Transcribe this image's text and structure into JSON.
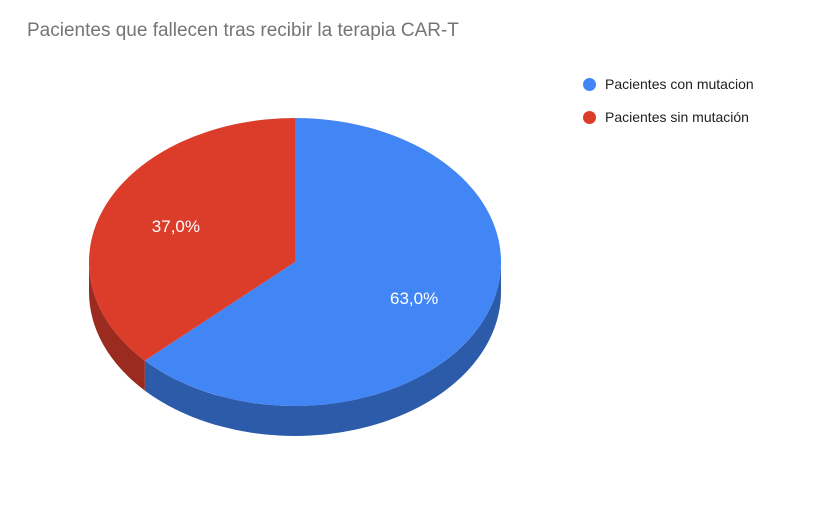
{
  "chart_data": {
    "type": "pie",
    "title": "Pacientes que fallecen tras recibir la terapia CAR-T",
    "is_3d": true,
    "legend_position": "right",
    "rotation": "clockwise",
    "start_angle_deg_from_top": 0,
    "slices": [
      {
        "label": "Pacientes con mutacion",
        "value": 63.0,
        "display": "63,0%",
        "color": "#4285F4",
        "side_color": "#2C5BA9"
      },
      {
        "label": "Pacientes sin mutación",
        "value": 37.0,
        "display": "37,0%",
        "color": "#DC3D2B",
        "side_color": "#9A2B1E"
      }
    ],
    "label_text_color": "#ffffff",
    "title_color": "#757575"
  }
}
